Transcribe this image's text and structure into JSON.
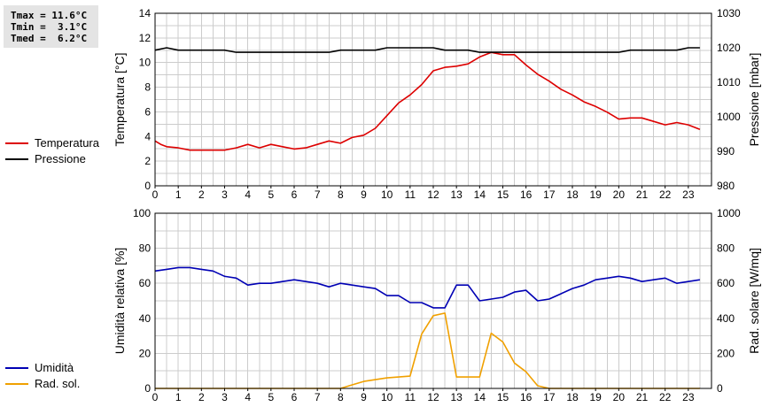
{
  "stats": {
    "tmax": "Tmax = 11.6°C",
    "tmin": "Tmin =  3.1°C",
    "tmed": "Tmed =  6.2°C"
  },
  "colors": {
    "temperature": "#dd0000",
    "pressure": "#000000",
    "humidity": "#0000b4",
    "radiation": "#f0a000",
    "grid": "#cccccc",
    "stats_bg": "#e4e4e4"
  },
  "chart_data": [
    {
      "type": "line",
      "x_ticks": [
        "0",
        "1",
        "2",
        "3",
        "4",
        "5",
        "6",
        "7",
        "8",
        "9",
        "10",
        "11",
        "12",
        "13",
        "14",
        "15",
        "16",
        "17",
        "18",
        "19",
        "20",
        "21",
        "22",
        "23"
      ],
      "xlim": [
        0,
        24
      ],
      "ylabel": "Temperatura [°C]",
      "ylim": [
        0,
        15
      ],
      "y_ticks": [
        "0",
        "2",
        "4",
        "6",
        "8",
        "10",
        "12",
        "14"
      ],
      "y2label": "Pressione [mbar]",
      "y2lim": [
        980,
        1030
      ],
      "y2_ticks": [
        "980",
        "990",
        "1000",
        "1010",
        "1020",
        "1030"
      ],
      "grid": true,
      "legend_position": "left",
      "series": [
        {
          "name": "Temperatura",
          "axis": "left",
          "x": [
            0,
            0.25,
            0.5,
            1,
            1.5,
            2,
            2.5,
            3,
            3.5,
            4,
            4.5,
            5,
            5.5,
            6,
            6.5,
            7,
            7.5,
            8,
            8.5,
            9,
            9.5,
            10,
            10.5,
            11,
            11.5,
            12,
            12.5,
            13,
            13.5,
            14,
            14.5,
            15,
            15.5,
            16,
            16.5,
            17,
            17.5,
            18,
            18.5,
            19,
            19.5,
            20,
            20.5,
            21,
            21.5,
            22,
            22.5,
            23,
            23.5
          ],
          "y": [
            3.9,
            3.6,
            3.4,
            3.3,
            3.1,
            3.1,
            3.1,
            3.1,
            3.3,
            3.6,
            3.3,
            3.6,
            3.4,
            3.2,
            3.3,
            3.6,
            3.9,
            3.7,
            4.2,
            4.4,
            5.0,
            6.1,
            7.2,
            7.9,
            8.8,
            10.0,
            10.3,
            10.4,
            10.6,
            11.2,
            11.6,
            11.4,
            11.4,
            10.5,
            9.7,
            9.1,
            8.4,
            7.9,
            7.3,
            6.9,
            6.4,
            5.8,
            5.9,
            5.9,
            5.6,
            5.3,
            5.5,
            5.3,
            4.9
          ]
        },
        {
          "name": "Pressione",
          "axis": "right",
          "x": [
            0,
            0.5,
            1,
            1.5,
            2,
            2.5,
            3,
            3.5,
            4,
            4.5,
            5,
            5.5,
            6,
            6.5,
            7,
            7.5,
            8,
            8.5,
            9,
            9.5,
            10,
            10.5,
            11,
            11.5,
            12,
            12.5,
            13,
            13.5,
            14,
            14.5,
            15,
            15.5,
            16,
            16.5,
            17,
            17.5,
            18,
            18.5,
            19,
            19.5,
            20,
            20.5,
            21,
            21.5,
            22,
            22.5,
            23,
            23.5
          ],
          "y": [
            1019.3,
            1020,
            1019.3,
            1019.3,
            1019.3,
            1019.3,
            1019.3,
            1018.7,
            1018.7,
            1018.7,
            1018.7,
            1018.7,
            1018.7,
            1018.7,
            1018.7,
            1018.7,
            1019.3,
            1019.3,
            1019.3,
            1019.3,
            1020,
            1020,
            1020,
            1020,
            1020,
            1019.3,
            1019.3,
            1019.3,
            1018.7,
            1018.7,
            1018.7,
            1018.7,
            1018.7,
            1018.7,
            1018.7,
            1018.7,
            1018.7,
            1018.7,
            1018.7,
            1018.7,
            1018.7,
            1019.3,
            1019.3,
            1019.3,
            1019.3,
            1019.3,
            1020,
            1020
          ]
        }
      ]
    },
    {
      "type": "line",
      "x_ticks": [
        "0",
        "1",
        "2",
        "3",
        "4",
        "5",
        "6",
        "7",
        "8",
        "9",
        "10",
        "11",
        "12",
        "13",
        "14",
        "15",
        "16",
        "17",
        "18",
        "19",
        "20",
        "21",
        "22",
        "23"
      ],
      "xlim": [
        0,
        24
      ],
      "ylabel": "Umidità relativa [%]",
      "ylim": [
        0,
        100
      ],
      "y_ticks": [
        "0",
        "20",
        "40",
        "60",
        "80",
        "100"
      ],
      "y2label": "Rad. solare [W/mq]",
      "y2lim": [
        0,
        1000
      ],
      "y2_ticks": [
        "0",
        "200",
        "400",
        "600",
        "800",
        "1000"
      ],
      "grid": true,
      "legend_position": "left",
      "series": [
        {
          "name": "Umidità",
          "axis": "left",
          "x": [
            0,
            0.5,
            1,
            1.5,
            2,
            2.5,
            3,
            3.5,
            4,
            4.5,
            5,
            5.5,
            6,
            6.5,
            7,
            7.5,
            8,
            8.5,
            9,
            9.5,
            10,
            10.5,
            11,
            11.5,
            12,
            12.5,
            13,
            13.5,
            14,
            14.5,
            15,
            15.5,
            16,
            16.5,
            17,
            17.5,
            18,
            18.5,
            19,
            19.5,
            20,
            20.5,
            21,
            21.5,
            22,
            22.5,
            23,
            23.5
          ],
          "y": [
            67,
            68,
            69,
            69,
            68,
            67,
            64,
            63,
            59,
            60,
            60,
            61,
            62,
            61,
            60,
            58,
            60,
            59,
            58,
            57,
            53,
            53,
            49,
            49,
            46,
            46,
            59,
            59,
            50,
            51,
            52,
            55,
            56,
            50,
            51,
            54,
            57,
            59,
            62,
            63,
            64,
            63,
            61,
            62,
            63,
            60,
            61,
            62
          ]
        },
        {
          "name": "Rad. sol.",
          "axis": "right",
          "x": [
            0,
            0.5,
            1,
            1.5,
            2,
            2.5,
            3,
            3.5,
            4,
            4.5,
            5,
            5.5,
            6,
            6.5,
            7,
            7.5,
            8,
            8.5,
            9,
            9.5,
            10,
            10.5,
            11,
            11.5,
            12,
            12.5,
            13,
            13.5,
            14,
            14.5,
            15,
            15.5,
            16,
            16.5,
            17,
            17.5,
            18,
            18.5,
            19,
            19.5,
            20,
            20.5,
            21,
            21.5,
            22,
            22.5,
            23,
            23.5
          ],
          "y": [
            0,
            0,
            0,
            0,
            0,
            0,
            0,
            0,
            0,
            0,
            0,
            0,
            0,
            0,
            0,
            0,
            0,
            20,
            40,
            50,
            60,
            65,
            70,
            310,
            415,
            430,
            65,
            65,
            65,
            315,
            265,
            145,
            95,
            15,
            0,
            0,
            0,
            0,
            0,
            0,
            0,
            0,
            0,
            0,
            0,
            0,
            0,
            0
          ]
        }
      ]
    }
  ]
}
